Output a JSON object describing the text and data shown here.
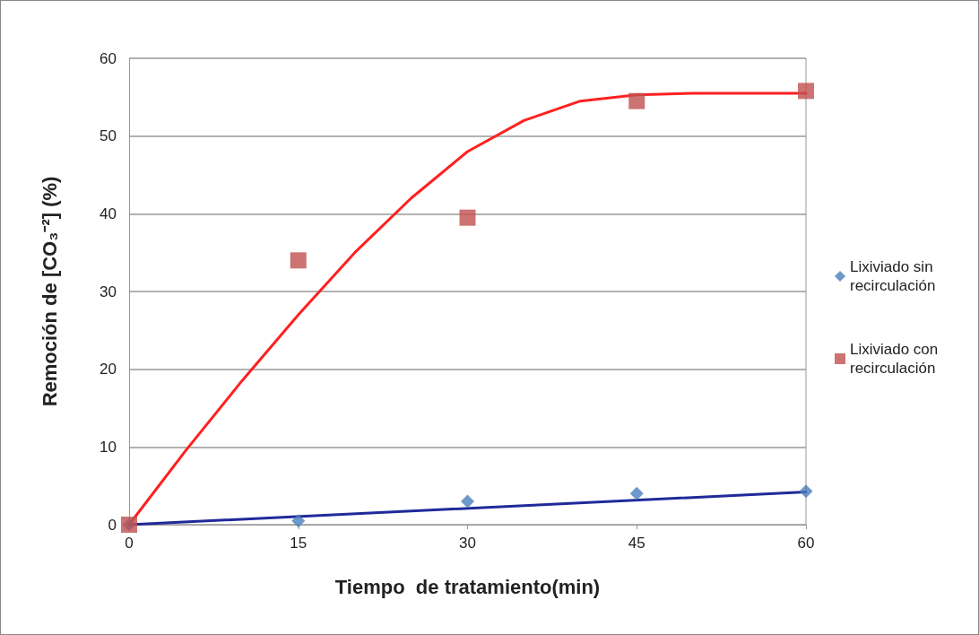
{
  "chart_data": {
    "type": "scatter",
    "xlabel": "Tiempo  de tratamiento(min)",
    "ylabel": "Remoción de [CO₃⁻²] (%)",
    "x": [
      0,
      15,
      30,
      45,
      60
    ],
    "series": [
      {
        "name": "Lixiviado sin recirculación",
        "marker": "diamond",
        "color": "#4a7ebb",
        "values": [
          0,
          0.5,
          3,
          4,
          4.3
        ]
      },
      {
        "name": "Lixiviado con recirculación",
        "marker": "square",
        "color": "#c0504d",
        "values": [
          0,
          34,
          39.5,
          54.5,
          55.8
        ]
      },
      {
        "type": "line",
        "marker": "none",
        "line_style": "solid",
        "color": "#1f2a9a",
        "x": [
          0,
          60
        ],
        "values": [
          0,
          4.2
        ]
      },
      {
        "type": "line",
        "marker": "none",
        "line_style": "solid",
        "color": "#ff2020",
        "x": [
          0,
          5,
          10,
          15,
          20,
          25,
          30,
          35,
          40,
          45,
          50,
          55,
          60
        ],
        "values": [
          0,
          9.5,
          18.5,
          27,
          35,
          42,
          48,
          52,
          54.5,
          55.3,
          55.5,
          55.5,
          55.5
        ]
      }
    ],
    "xlim": [
      0,
      60
    ],
    "xticks": [
      0,
      15,
      30,
      45,
      60
    ],
    "ylim": [
      0,
      60
    ],
    "yticks": [
      0,
      10,
      20,
      30,
      40,
      50,
      60
    ],
    "grid": "y",
    "legend": "right"
  }
}
